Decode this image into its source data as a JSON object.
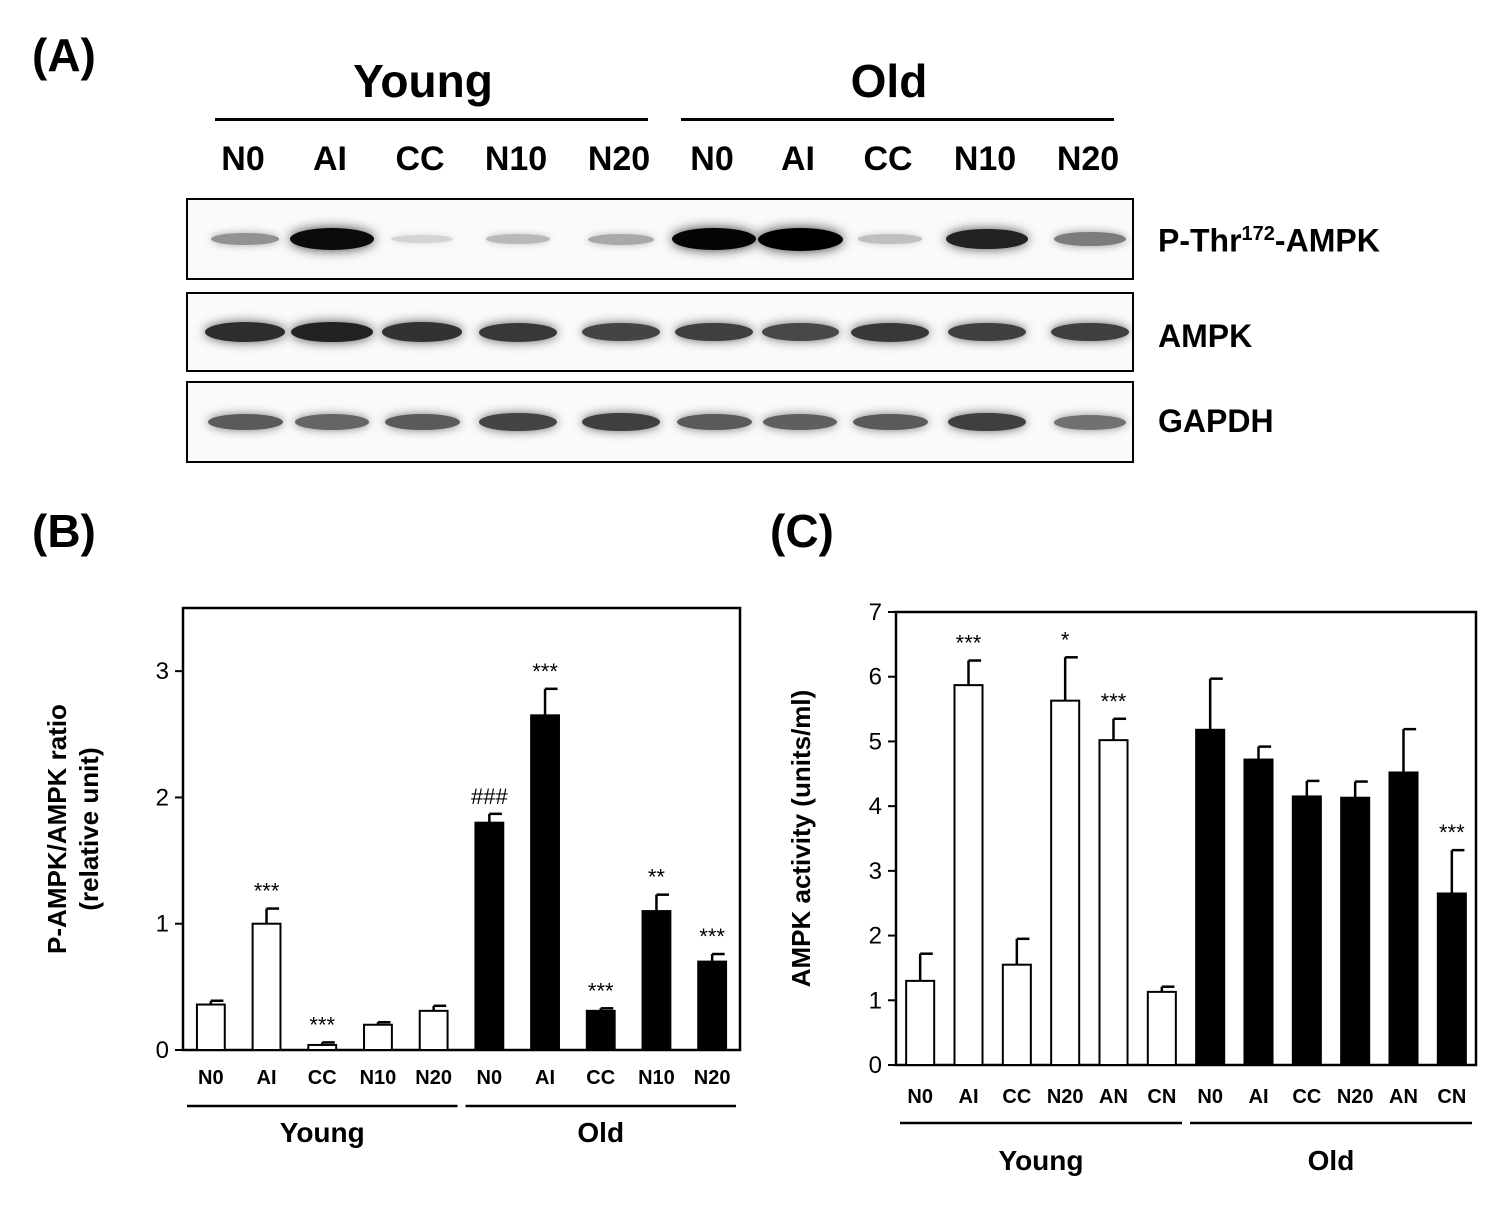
{
  "panel_a": {
    "label": "(A)",
    "groups": [
      "Young",
      "Old"
    ],
    "lanes": [
      "N0",
      "AI",
      "CC",
      "N10",
      "N20",
      "N0",
      "AI",
      "CC",
      "N10",
      "N20"
    ],
    "blots": [
      {
        "name_main": "P-Thr",
        "name_sup": "172",
        "name_rest": "-AMPK",
        "intensity": [
          0.35,
          0.95,
          0.06,
          0.18,
          0.25,
          0.98,
          1.0,
          0.15,
          0.85,
          0.45
        ]
      },
      {
        "name_main": "AMPK",
        "name_sup": "",
        "name_rest": "",
        "intensity": [
          0.8,
          0.85,
          0.78,
          0.75,
          0.7,
          0.72,
          0.68,
          0.75,
          0.72,
          0.72
        ]
      },
      {
        "name_main": "GAPDH",
        "name_sup": "",
        "name_rest": "",
        "intensity": [
          0.6,
          0.55,
          0.6,
          0.7,
          0.72,
          0.6,
          0.58,
          0.6,
          0.72,
          0.5
        ]
      }
    ]
  },
  "panel_b": {
    "label": "(B)"
  },
  "panel_c": {
    "label": "(C)"
  },
  "chart_data": [
    {
      "type": "bar",
      "ylabel_line1": "P-AMPK/AMPK ratio",
      "ylabel_line2": "(relative unit)",
      "ylim": [
        0,
        3.5
      ],
      "yticks": [
        0,
        1,
        2,
        3
      ],
      "categories": [
        "N0",
        "AI",
        "CC",
        "N10",
        "N20",
        "N0",
        "AI",
        "CC",
        "N10",
        "N20"
      ],
      "groups": [
        {
          "name": "Young",
          "count": 5
        },
        {
          "name": "Old",
          "count": 5
        }
      ],
      "values": [
        0.36,
        1.0,
        0.04,
        0.2,
        0.31,
        1.8,
        2.65,
        0.31,
        1.1,
        0.7
      ],
      "errors": [
        0.03,
        0.12,
        0.02,
        0.02,
        0.04,
        0.07,
        0.21,
        0.02,
        0.13,
        0.06
      ],
      "fill": [
        "#ffffff",
        "#ffffff",
        "#ffffff",
        "#ffffff",
        "#ffffff",
        "#000000",
        "#000000",
        "#000000",
        "#000000",
        "#000000"
      ],
      "annotations": [
        "",
        "***",
        "***",
        "",
        "",
        "###",
        "***",
        "***",
        "**",
        "***"
      ]
    },
    {
      "type": "bar",
      "ylabel": "AMPK activity (units/ml)",
      "ylim": [
        0,
        7
      ],
      "yticks": [
        0,
        1,
        2,
        3,
        4,
        5,
        6,
        7
      ],
      "categories": [
        "N0",
        "AI",
        "CC",
        "N20",
        "AN",
        "CN",
        "N0",
        "AI",
        "CC",
        "N20",
        "AN",
        "CN"
      ],
      "groups": [
        {
          "name": "Young",
          "count": 6
        },
        {
          "name": "Old",
          "count": 6
        }
      ],
      "values": [
        1.3,
        5.87,
        1.55,
        5.63,
        5.02,
        1.13,
        5.18,
        4.72,
        4.15,
        4.13,
        4.52,
        2.65
      ],
      "errors": [
        0.42,
        0.38,
        0.4,
        0.67,
        0.33,
        0.08,
        0.79,
        0.2,
        0.24,
        0.25,
        0.67,
        0.67
      ],
      "fill": [
        "#ffffff",
        "#ffffff",
        "#ffffff",
        "#ffffff",
        "#ffffff",
        "#ffffff",
        "#000000",
        "#000000",
        "#000000",
        "#000000",
        "#000000",
        "#000000"
      ],
      "annotations": [
        "",
        "***",
        "",
        "*",
        "***",
        "",
        "",
        "",
        "",
        "",
        "",
        "***"
      ]
    }
  ]
}
